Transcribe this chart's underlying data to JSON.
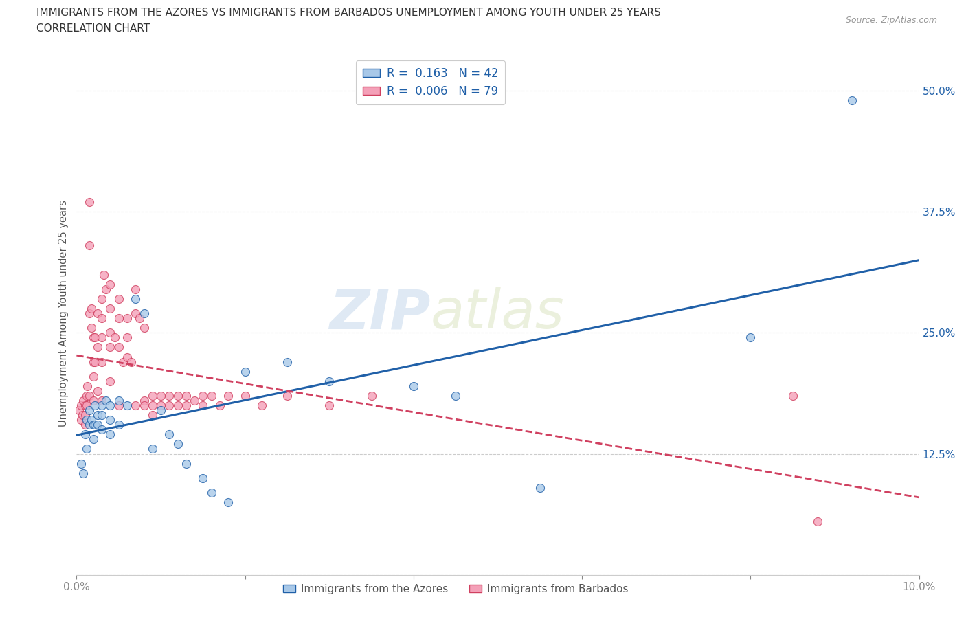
{
  "title_line1": "IMMIGRANTS FROM THE AZORES VS IMMIGRANTS FROM BARBADOS UNEMPLOYMENT AMONG YOUTH UNDER 25 YEARS",
  "title_line2": "CORRELATION CHART",
  "source": "Source: ZipAtlas.com",
  "ylabel": "Unemployment Among Youth under 25 years",
  "xlim": [
    0.0,
    0.1
  ],
  "ylim": [
    0.0,
    0.54
  ],
  "yticks": [
    0.0,
    0.125,
    0.25,
    0.375,
    0.5
  ],
  "ytick_labels": [
    "",
    "12.5%",
    "25.0%",
    "37.5%",
    "50.0%"
  ],
  "xticks": [
    0.0,
    0.02,
    0.04,
    0.06,
    0.08,
    0.1
  ],
  "xtick_labels": [
    "0.0%",
    "",
    "",
    "",
    "",
    "10.0%"
  ],
  "watermark": "ZIPatlas",
  "color_azores": "#a8c8e8",
  "color_barbados": "#f4a0b8",
  "color_azores_line": "#2060a8",
  "color_barbados_line": "#d04060",
  "azores_x": [
    0.0005,
    0.0008,
    0.001,
    0.0012,
    0.0012,
    0.0015,
    0.0015,
    0.0018,
    0.002,
    0.002,
    0.0022,
    0.0022,
    0.0025,
    0.0025,
    0.003,
    0.003,
    0.003,
    0.0035,
    0.004,
    0.004,
    0.004,
    0.005,
    0.005,
    0.006,
    0.007,
    0.008,
    0.009,
    0.01,
    0.011,
    0.012,
    0.013,
    0.015,
    0.016,
    0.018,
    0.02,
    0.025,
    0.03,
    0.04,
    0.045,
    0.055,
    0.08,
    0.092
  ],
  "azores_y": [
    0.115,
    0.105,
    0.145,
    0.16,
    0.13,
    0.155,
    0.17,
    0.16,
    0.155,
    0.14,
    0.155,
    0.175,
    0.165,
    0.155,
    0.175,
    0.165,
    0.15,
    0.18,
    0.175,
    0.16,
    0.145,
    0.18,
    0.155,
    0.175,
    0.285,
    0.27,
    0.13,
    0.17,
    0.145,
    0.135,
    0.115,
    0.1,
    0.085,
    0.075,
    0.21,
    0.22,
    0.2,
    0.195,
    0.185,
    0.09,
    0.245,
    0.49
  ],
  "barbados_x": [
    0.0003,
    0.0005,
    0.0005,
    0.0007,
    0.0008,
    0.001,
    0.001,
    0.001,
    0.0012,
    0.0012,
    0.0013,
    0.0015,
    0.0015,
    0.0015,
    0.0015,
    0.0018,
    0.0018,
    0.002,
    0.002,
    0.002,
    0.002,
    0.0022,
    0.0022,
    0.0025,
    0.0025,
    0.0025,
    0.003,
    0.003,
    0.003,
    0.003,
    0.003,
    0.0032,
    0.0035,
    0.004,
    0.004,
    0.004,
    0.004,
    0.004,
    0.0045,
    0.005,
    0.005,
    0.005,
    0.005,
    0.0055,
    0.006,
    0.006,
    0.006,
    0.0065,
    0.007,
    0.007,
    0.007,
    0.0075,
    0.008,
    0.008,
    0.008,
    0.009,
    0.009,
    0.009,
    0.01,
    0.01,
    0.011,
    0.011,
    0.012,
    0.012,
    0.013,
    0.013,
    0.014,
    0.015,
    0.015,
    0.016,
    0.017,
    0.018,
    0.02,
    0.022,
    0.025,
    0.03,
    0.035,
    0.085,
    0.088
  ],
  "barbados_y": [
    0.17,
    0.175,
    0.16,
    0.165,
    0.18,
    0.175,
    0.165,
    0.155,
    0.175,
    0.185,
    0.195,
    0.385,
    0.34,
    0.27,
    0.185,
    0.275,
    0.255,
    0.245,
    0.22,
    0.205,
    0.18,
    0.245,
    0.22,
    0.27,
    0.235,
    0.19,
    0.285,
    0.265,
    0.245,
    0.22,
    0.18,
    0.31,
    0.295,
    0.3,
    0.275,
    0.25,
    0.235,
    0.2,
    0.245,
    0.285,
    0.265,
    0.235,
    0.175,
    0.22,
    0.265,
    0.245,
    0.225,
    0.22,
    0.295,
    0.27,
    0.175,
    0.265,
    0.255,
    0.18,
    0.175,
    0.185,
    0.175,
    0.165,
    0.185,
    0.175,
    0.185,
    0.175,
    0.185,
    0.175,
    0.185,
    0.175,
    0.18,
    0.185,
    0.175,
    0.185,
    0.175,
    0.185,
    0.185,
    0.175,
    0.185,
    0.175,
    0.185,
    0.185,
    0.055
  ]
}
